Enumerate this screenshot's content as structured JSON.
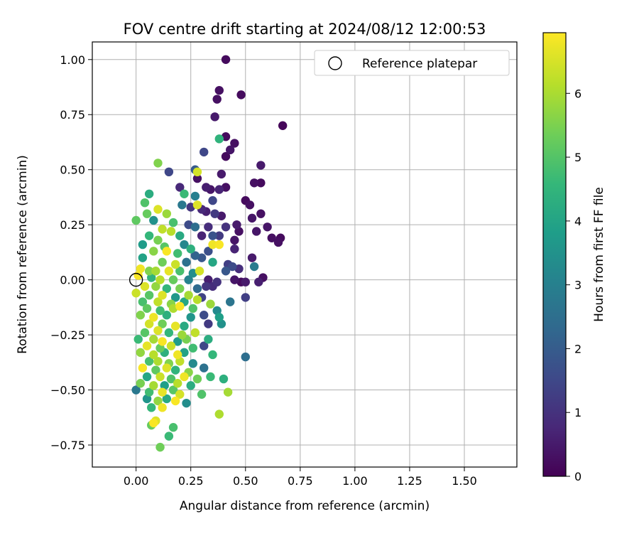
{
  "chart_data": {
    "type": "scatter",
    "title": "FOV centre drift starting at 2024/08/12 12:00:53",
    "xlabel": "Angular distance from reference (arcmin)",
    "ylabel": "Rotation from reference (arcmin)",
    "xlim": [
      -0.2,
      1.74
    ],
    "ylim": [
      -0.85,
      1.08
    ],
    "xticks": [
      "0.00",
      "0.25",
      "0.50",
      "0.75",
      "1.00",
      "1.25",
      "1.50"
    ],
    "xtick_values": [
      0,
      0.25,
      0.5,
      0.75,
      1.0,
      1.25,
      1.5
    ],
    "yticks": [
      "−0.75",
      "−0.50",
      "−0.25",
      "0.00",
      "0.25",
      "0.50",
      "0.75",
      "1.00"
    ],
    "ytick_values": [
      -0.75,
      -0.5,
      -0.25,
      0,
      0.25,
      0.5,
      0.75,
      1.0
    ],
    "grid": true,
    "legend": {
      "position": "top-right",
      "entries": [
        "Reference platepar"
      ]
    },
    "reference_point": {
      "x": 0.0,
      "y": 0.0,
      "label": "Reference platepar"
    },
    "colorbar": {
      "label": "Hours from first FF file",
      "min": 0,
      "max": 6.95,
      "ticks": [
        "0",
        "1",
        "2",
        "3",
        "4",
        "5",
        "6"
      ],
      "tick_values": [
        0,
        1,
        2,
        3,
        4,
        5,
        6
      ],
      "colormap": [
        "#440154",
        "#482878",
        "#3e4989",
        "#31688e",
        "#26828e",
        "#1f9e89",
        "#35b779",
        "#6ece58",
        "#b5de2b",
        "#fde725"
      ]
    },
    "points": [
      {
        "x": 0.41,
        "y": 1.0,
        "h": 0.2
      },
      {
        "x": 0.38,
        "y": 0.86,
        "h": 0.3
      },
      {
        "x": 0.48,
        "y": 0.84,
        "h": 0.2
      },
      {
        "x": 0.37,
        "y": 0.82,
        "h": 0.3
      },
      {
        "x": 0.36,
        "y": 0.74,
        "h": 0.5
      },
      {
        "x": 0.67,
        "y": 0.7,
        "h": 0.1
      },
      {
        "x": 0.41,
        "y": 0.65,
        "h": 0.2
      },
      {
        "x": 0.38,
        "y": 0.64,
        "h": 4.5
      },
      {
        "x": 0.45,
        "y": 0.62,
        "h": 0.3
      },
      {
        "x": 0.43,
        "y": 0.59,
        "h": 0.4
      },
      {
        "x": 0.31,
        "y": 0.58,
        "h": 1.5
      },
      {
        "x": 0.41,
        "y": 0.56,
        "h": 0.2
      },
      {
        "x": 0.1,
        "y": 0.53,
        "h": 5.6
      },
      {
        "x": 0.57,
        "y": 0.52,
        "h": 0.5
      },
      {
        "x": 0.15,
        "y": 0.49,
        "h": 1.5
      },
      {
        "x": 0.27,
        "y": 0.5,
        "h": 2.0
      },
      {
        "x": 0.28,
        "y": 0.49,
        "h": 6.5
      },
      {
        "x": 0.39,
        "y": 0.48,
        "h": 0.5
      },
      {
        "x": 0.28,
        "y": 0.46,
        "h": 0.3
      },
      {
        "x": 0.54,
        "y": 0.44,
        "h": 0.3
      },
      {
        "x": 0.57,
        "y": 0.44,
        "h": 0.2
      },
      {
        "x": 0.2,
        "y": 0.42,
        "h": 0.8
      },
      {
        "x": 0.32,
        "y": 0.42,
        "h": 0.6
      },
      {
        "x": 0.34,
        "y": 0.41,
        "h": 0.4
      },
      {
        "x": 0.38,
        "y": 0.41,
        "h": 0.7
      },
      {
        "x": 0.41,
        "y": 0.42,
        "h": 0.3
      },
      {
        "x": 0.22,
        "y": 0.39,
        "h": 4.7
      },
      {
        "x": 0.06,
        "y": 0.39,
        "h": 4.3
      },
      {
        "x": 0.27,
        "y": 0.38,
        "h": 3.0
      },
      {
        "x": 0.5,
        "y": 0.36,
        "h": 0.2
      },
      {
        "x": 0.35,
        "y": 0.36,
        "h": 1.5
      },
      {
        "x": 0.04,
        "y": 0.35,
        "h": 5.0
      },
      {
        "x": 0.21,
        "y": 0.34,
        "h": 2.8
      },
      {
        "x": 0.25,
        "y": 0.33,
        "h": 1.1
      },
      {
        "x": 0.28,
        "y": 0.34,
        "h": 6.6
      },
      {
        "x": 0.3,
        "y": 0.32,
        "h": 0.8
      },
      {
        "x": 0.52,
        "y": 0.34,
        "h": 0.3
      },
      {
        "x": 0.1,
        "y": 0.32,
        "h": 6.6
      },
      {
        "x": 0.14,
        "y": 0.3,
        "h": 5.9
      },
      {
        "x": 0.05,
        "y": 0.3,
        "h": 5.3
      },
      {
        "x": 0.32,
        "y": 0.31,
        "h": 0.6
      },
      {
        "x": 0.36,
        "y": 0.3,
        "h": 1.2
      },
      {
        "x": 0.39,
        "y": 0.29,
        "h": 0.5
      },
      {
        "x": 0.53,
        "y": 0.28,
        "h": 0.4
      },
      {
        "x": 0.57,
        "y": 0.3,
        "h": 0.3
      },
      {
        "x": 0.0,
        "y": 0.27,
        "h": 5.2
      },
      {
        "x": 0.08,
        "y": 0.27,
        "h": 3.5
      },
      {
        "x": 0.17,
        "y": 0.26,
        "h": 4.9
      },
      {
        "x": 0.24,
        "y": 0.25,
        "h": 1.6
      },
      {
        "x": 0.27,
        "y": 0.24,
        "h": 2.5
      },
      {
        "x": 0.33,
        "y": 0.24,
        "h": 0.9
      },
      {
        "x": 0.41,
        "y": 0.24,
        "h": 1.0
      },
      {
        "x": 0.46,
        "y": 0.25,
        "h": 0.5
      },
      {
        "x": 0.47,
        "y": 0.22,
        "h": 0.3
      },
      {
        "x": 0.55,
        "y": 0.22,
        "h": 0.4
      },
      {
        "x": 0.6,
        "y": 0.24,
        "h": 0.4
      },
      {
        "x": 0.12,
        "y": 0.23,
        "h": 6.3
      },
      {
        "x": 0.16,
        "y": 0.22,
        "h": 6.2
      },
      {
        "x": 0.06,
        "y": 0.2,
        "h": 4.6
      },
      {
        "x": 0.1,
        "y": 0.18,
        "h": 5.5
      },
      {
        "x": 0.2,
        "y": 0.2,
        "h": 4.2
      },
      {
        "x": 0.3,
        "y": 0.2,
        "h": 0.7
      },
      {
        "x": 0.35,
        "y": 0.2,
        "h": 1.8
      },
      {
        "x": 0.38,
        "y": 0.2,
        "h": 1.2
      },
      {
        "x": 0.45,
        "y": 0.18,
        "h": 0.4
      },
      {
        "x": 0.62,
        "y": 0.19,
        "h": 0.3
      },
      {
        "x": 0.66,
        "y": 0.19,
        "h": 0.2
      },
      {
        "x": 0.65,
        "y": 0.17,
        "h": 0.3
      },
      {
        "x": 0.03,
        "y": 0.16,
        "h": 3.8
      },
      {
        "x": 0.13,
        "y": 0.15,
        "h": 5.1
      },
      {
        "x": 0.22,
        "y": 0.16,
        "h": 3.2
      },
      {
        "x": 0.25,
        "y": 0.14,
        "h": 4.4
      },
      {
        "x": 0.35,
        "y": 0.16,
        "h": 6.8
      },
      {
        "x": 0.38,
        "y": 0.16,
        "h": 6.9
      },
      {
        "x": 0.45,
        "y": 0.14,
        "h": 0.7
      },
      {
        "x": 0.33,
        "y": 0.13,
        "h": 1.7
      },
      {
        "x": 0.08,
        "y": 0.13,
        "h": 5.7
      },
      {
        "x": 0.14,
        "y": 0.13,
        "h": 6.9
      },
      {
        "x": 0.19,
        "y": 0.12,
        "h": 4.8
      },
      {
        "x": 0.27,
        "y": 0.11,
        "h": 2.2
      },
      {
        "x": 0.3,
        "y": 0.1,
        "h": 1.9
      },
      {
        "x": 0.53,
        "y": 0.1,
        "h": 0.5
      },
      {
        "x": 0.03,
        "y": 0.1,
        "h": 4.0
      },
      {
        "x": 0.12,
        "y": 0.08,
        "h": 5.4
      },
      {
        "x": 0.18,
        "y": 0.07,
        "h": 6.4
      },
      {
        "x": 0.23,
        "y": 0.08,
        "h": 2.6
      },
      {
        "x": 0.35,
        "y": 0.08,
        "h": 4.1
      },
      {
        "x": 0.42,
        "y": 0.07,
        "h": 1.3
      },
      {
        "x": 0.44,
        "y": 0.06,
        "h": 1.6
      },
      {
        "x": 0.47,
        "y": 0.05,
        "h": 0.9
      },
      {
        "x": 0.54,
        "y": 0.06,
        "h": 2.9
      },
      {
        "x": 0.02,
        "y": 0.05,
        "h": 6.8
      },
      {
        "x": 0.06,
        "y": 0.04,
        "h": 5.6
      },
      {
        "x": 0.09,
        "y": 0.04,
        "h": 6.0
      },
      {
        "x": 0.15,
        "y": 0.04,
        "h": 6.7
      },
      {
        "x": 0.2,
        "y": 0.04,
        "h": 4.9
      },
      {
        "x": 0.26,
        "y": 0.03,
        "h": 3.4
      },
      {
        "x": 0.29,
        "y": 0.04,
        "h": 6.5
      },
      {
        "x": 0.41,
        "y": 0.04,
        "h": 1.9
      },
      {
        "x": 0.01,
        "y": 0.02,
        "h": 6.9
      },
      {
        "x": 0.07,
        "y": 0.01,
        "h": 4.5
      },
      {
        "x": 0.11,
        "y": 0.0,
        "h": 6.2
      },
      {
        "x": 0.17,
        "y": 0.0,
        "h": 5.3
      },
      {
        "x": 0.24,
        "y": 0.0,
        "h": 3.1
      },
      {
        "x": 0.33,
        "y": 0.0,
        "h": 0.6
      },
      {
        "x": 0.37,
        "y": -0.01,
        "h": 1.0
      },
      {
        "x": 0.45,
        "y": 0.0,
        "h": 0.4
      },
      {
        "x": 0.58,
        "y": 0.01,
        "h": 0.3
      },
      {
        "x": 0.56,
        "y": -0.01,
        "h": 0.6
      },
      {
        "x": 0.5,
        "y": -0.01,
        "h": 0.5
      },
      {
        "x": 0.48,
        "y": -0.01,
        "h": 0.2
      },
      {
        "x": 0.04,
        "y": -0.03,
        "h": 6.6
      },
      {
        "x": 0.09,
        "y": -0.03,
        "h": 5.8
      },
      {
        "x": 0.14,
        "y": -0.04,
        "h": 4.6
      },
      {
        "x": 0.2,
        "y": -0.04,
        "h": 5.5
      },
      {
        "x": 0.28,
        "y": -0.04,
        "h": 2.4
      },
      {
        "x": 0.32,
        "y": -0.03,
        "h": 1.1
      },
      {
        "x": 0.35,
        "y": -0.03,
        "h": 0.9
      },
      {
        "x": 0.0,
        "y": -0.06,
        "h": 6.4
      },
      {
        "x": 0.06,
        "y": -0.07,
        "h": 5.1
      },
      {
        "x": 0.12,
        "y": -0.07,
        "h": 6.6
      },
      {
        "x": 0.18,
        "y": -0.08,
        "h": 3.7
      },
      {
        "x": 0.24,
        "y": -0.07,
        "h": 6.0
      },
      {
        "x": 0.3,
        "y": -0.08,
        "h": 1.4
      },
      {
        "x": 0.5,
        "y": -0.08,
        "h": 1.3
      },
      {
        "x": 0.03,
        "y": -0.1,
        "h": 4.9
      },
      {
        "x": 0.1,
        "y": -0.1,
        "h": 6.3
      },
      {
        "x": 0.16,
        "y": -0.11,
        "h": 5.7
      },
      {
        "x": 0.22,
        "y": -0.1,
        "h": 4.1
      },
      {
        "x": 0.28,
        "y": -0.09,
        "h": 6.2
      },
      {
        "x": 0.34,
        "y": -0.11,
        "h": 5.9
      },
      {
        "x": 0.43,
        "y": -0.1,
        "h": 2.7
      },
      {
        "x": 0.05,
        "y": -0.13,
        "h": 5.2
      },
      {
        "x": 0.11,
        "y": -0.14,
        "h": 4.8
      },
      {
        "x": 0.17,
        "y": -0.13,
        "h": 6.1
      },
      {
        "x": 0.2,
        "y": -0.12,
        "h": 6.9
      },
      {
        "x": 0.26,
        "y": -0.13,
        "h": 5.0
      },
      {
        "x": 0.37,
        "y": -0.14,
        "h": 3.3
      },
      {
        "x": 0.02,
        "y": -0.16,
        "h": 5.6
      },
      {
        "x": 0.08,
        "y": -0.17,
        "h": 6.8
      },
      {
        "x": 0.14,
        "y": -0.16,
        "h": 4.4
      },
      {
        "x": 0.25,
        "y": -0.17,
        "h": 3.6
      },
      {
        "x": 0.31,
        "y": -0.16,
        "h": 1.6
      },
      {
        "x": 0.38,
        "y": -0.17,
        "h": 3.9
      },
      {
        "x": 0.06,
        "y": -0.2,
        "h": 6.5
      },
      {
        "x": 0.12,
        "y": -0.2,
        "h": 5.4
      },
      {
        "x": 0.18,
        "y": -0.21,
        "h": 6.7
      },
      {
        "x": 0.22,
        "y": -0.21,
        "h": 4.2
      },
      {
        "x": 0.33,
        "y": -0.2,
        "h": 1.2
      },
      {
        "x": 0.39,
        "y": -0.2,
        "h": 3.5
      },
      {
        "x": 0.04,
        "y": -0.24,
        "h": 5.1
      },
      {
        "x": 0.1,
        "y": -0.23,
        "h": 6.6
      },
      {
        "x": 0.15,
        "y": -0.24,
        "h": 4.6
      },
      {
        "x": 0.21,
        "y": -0.25,
        "h": 5.9
      },
      {
        "x": 0.27,
        "y": -0.24,
        "h": 6.3
      },
      {
        "x": 0.01,
        "y": -0.27,
        "h": 4.7
      },
      {
        "x": 0.08,
        "y": -0.27,
        "h": 6.0
      },
      {
        "x": 0.12,
        "y": -0.28,
        "h": 6.9
      },
      {
        "x": 0.19,
        "y": -0.28,
        "h": 3.8
      },
      {
        "x": 0.23,
        "y": -0.27,
        "h": 5.5
      },
      {
        "x": 0.33,
        "y": -0.27,
        "h": 4.3
      },
      {
        "x": 0.05,
        "y": -0.3,
        "h": 6.7
      },
      {
        "x": 0.11,
        "y": -0.31,
        "h": 5.3
      },
      {
        "x": 0.16,
        "y": -0.3,
        "h": 6.4
      },
      {
        "x": 0.26,
        "y": -0.31,
        "h": 4.8
      },
      {
        "x": 0.31,
        "y": -0.3,
        "h": 1.5
      },
      {
        "x": 0.02,
        "y": -0.33,
        "h": 5.8
      },
      {
        "x": 0.08,
        "y": -0.34,
        "h": 6.2
      },
      {
        "x": 0.13,
        "y": -0.33,
        "h": 4.4
      },
      {
        "x": 0.19,
        "y": -0.34,
        "h": 6.8
      },
      {
        "x": 0.22,
        "y": -0.33,
        "h": 4.0
      },
      {
        "x": 0.35,
        "y": -0.34,
        "h": 4.6
      },
      {
        "x": 0.5,
        "y": -0.35,
        "h": 2.5
      },
      {
        "x": 0.06,
        "y": -0.37,
        "h": 4.9
      },
      {
        "x": 0.1,
        "y": -0.37,
        "h": 6.1
      },
      {
        "x": 0.15,
        "y": -0.38,
        "h": 5.6
      },
      {
        "x": 0.2,
        "y": -0.37,
        "h": 6.3
      },
      {
        "x": 0.26,
        "y": -0.38,
        "h": 3.3
      },
      {
        "x": 0.03,
        "y": -0.4,
        "h": 6.9
      },
      {
        "x": 0.09,
        "y": -0.41,
        "h": 5.2
      },
      {
        "x": 0.14,
        "y": -0.4,
        "h": 6.6
      },
      {
        "x": 0.18,
        "y": -0.41,
        "h": 4.5
      },
      {
        "x": 0.24,
        "y": -0.42,
        "h": 5.7
      },
      {
        "x": 0.31,
        "y": -0.4,
        "h": 2.6
      },
      {
        "x": 0.05,
        "y": -0.44,
        "h": 4.1
      },
      {
        "x": 0.11,
        "y": -0.44,
        "h": 6.4
      },
      {
        "x": 0.16,
        "y": -0.45,
        "h": 5.0
      },
      {
        "x": 0.22,
        "y": -0.44,
        "h": 6.8
      },
      {
        "x": 0.28,
        "y": -0.45,
        "h": 5.4
      },
      {
        "x": 0.34,
        "y": -0.44,
        "h": 4.7
      },
      {
        "x": 0.4,
        "y": -0.45,
        "h": 4.4
      },
      {
        "x": 0.02,
        "y": -0.47,
        "h": 5.5
      },
      {
        "x": 0.08,
        "y": -0.48,
        "h": 6.0
      },
      {
        "x": 0.13,
        "y": -0.48,
        "h": 3.9
      },
      {
        "x": 0.19,
        "y": -0.47,
        "h": 6.2
      },
      {
        "x": 0.25,
        "y": -0.48,
        "h": 4.3
      },
      {
        "x": 0.0,
        "y": -0.5,
        "h": 2.8
      },
      {
        "x": 0.06,
        "y": -0.51,
        "h": 4.8
      },
      {
        "x": 0.12,
        "y": -0.51,
        "h": 6.7
      },
      {
        "x": 0.17,
        "y": -0.5,
        "h": 5.1
      },
      {
        "x": 0.2,
        "y": -0.52,
        "h": 6.5
      },
      {
        "x": 0.3,
        "y": -0.52,
        "h": 5.0
      },
      {
        "x": 0.42,
        "y": -0.51,
        "h": 6.0
      },
      {
        "x": 0.05,
        "y": -0.54,
        "h": 3.6
      },
      {
        "x": 0.1,
        "y": -0.55,
        "h": 5.8
      },
      {
        "x": 0.14,
        "y": -0.54,
        "h": 4.2
      },
      {
        "x": 0.18,
        "y": -0.55,
        "h": 6.9
      },
      {
        "x": 0.23,
        "y": -0.56,
        "h": 3.4
      },
      {
        "x": 0.07,
        "y": -0.58,
        "h": 4.6
      },
      {
        "x": 0.12,
        "y": -0.58,
        "h": 6.8
      },
      {
        "x": 0.38,
        "y": -0.61,
        "h": 6.1
      },
      {
        "x": 0.09,
        "y": -0.64,
        "h": 6.6
      },
      {
        "x": 0.07,
        "y": -0.66,
        "h": 5.3
      },
      {
        "x": 0.08,
        "y": -0.65,
        "h": 6.9
      },
      {
        "x": 0.17,
        "y": -0.67,
        "h": 4.9
      },
      {
        "x": 0.15,
        "y": -0.71,
        "h": 4.7
      },
      {
        "x": 0.11,
        "y": -0.76,
        "h": 5.4
      }
    ]
  }
}
